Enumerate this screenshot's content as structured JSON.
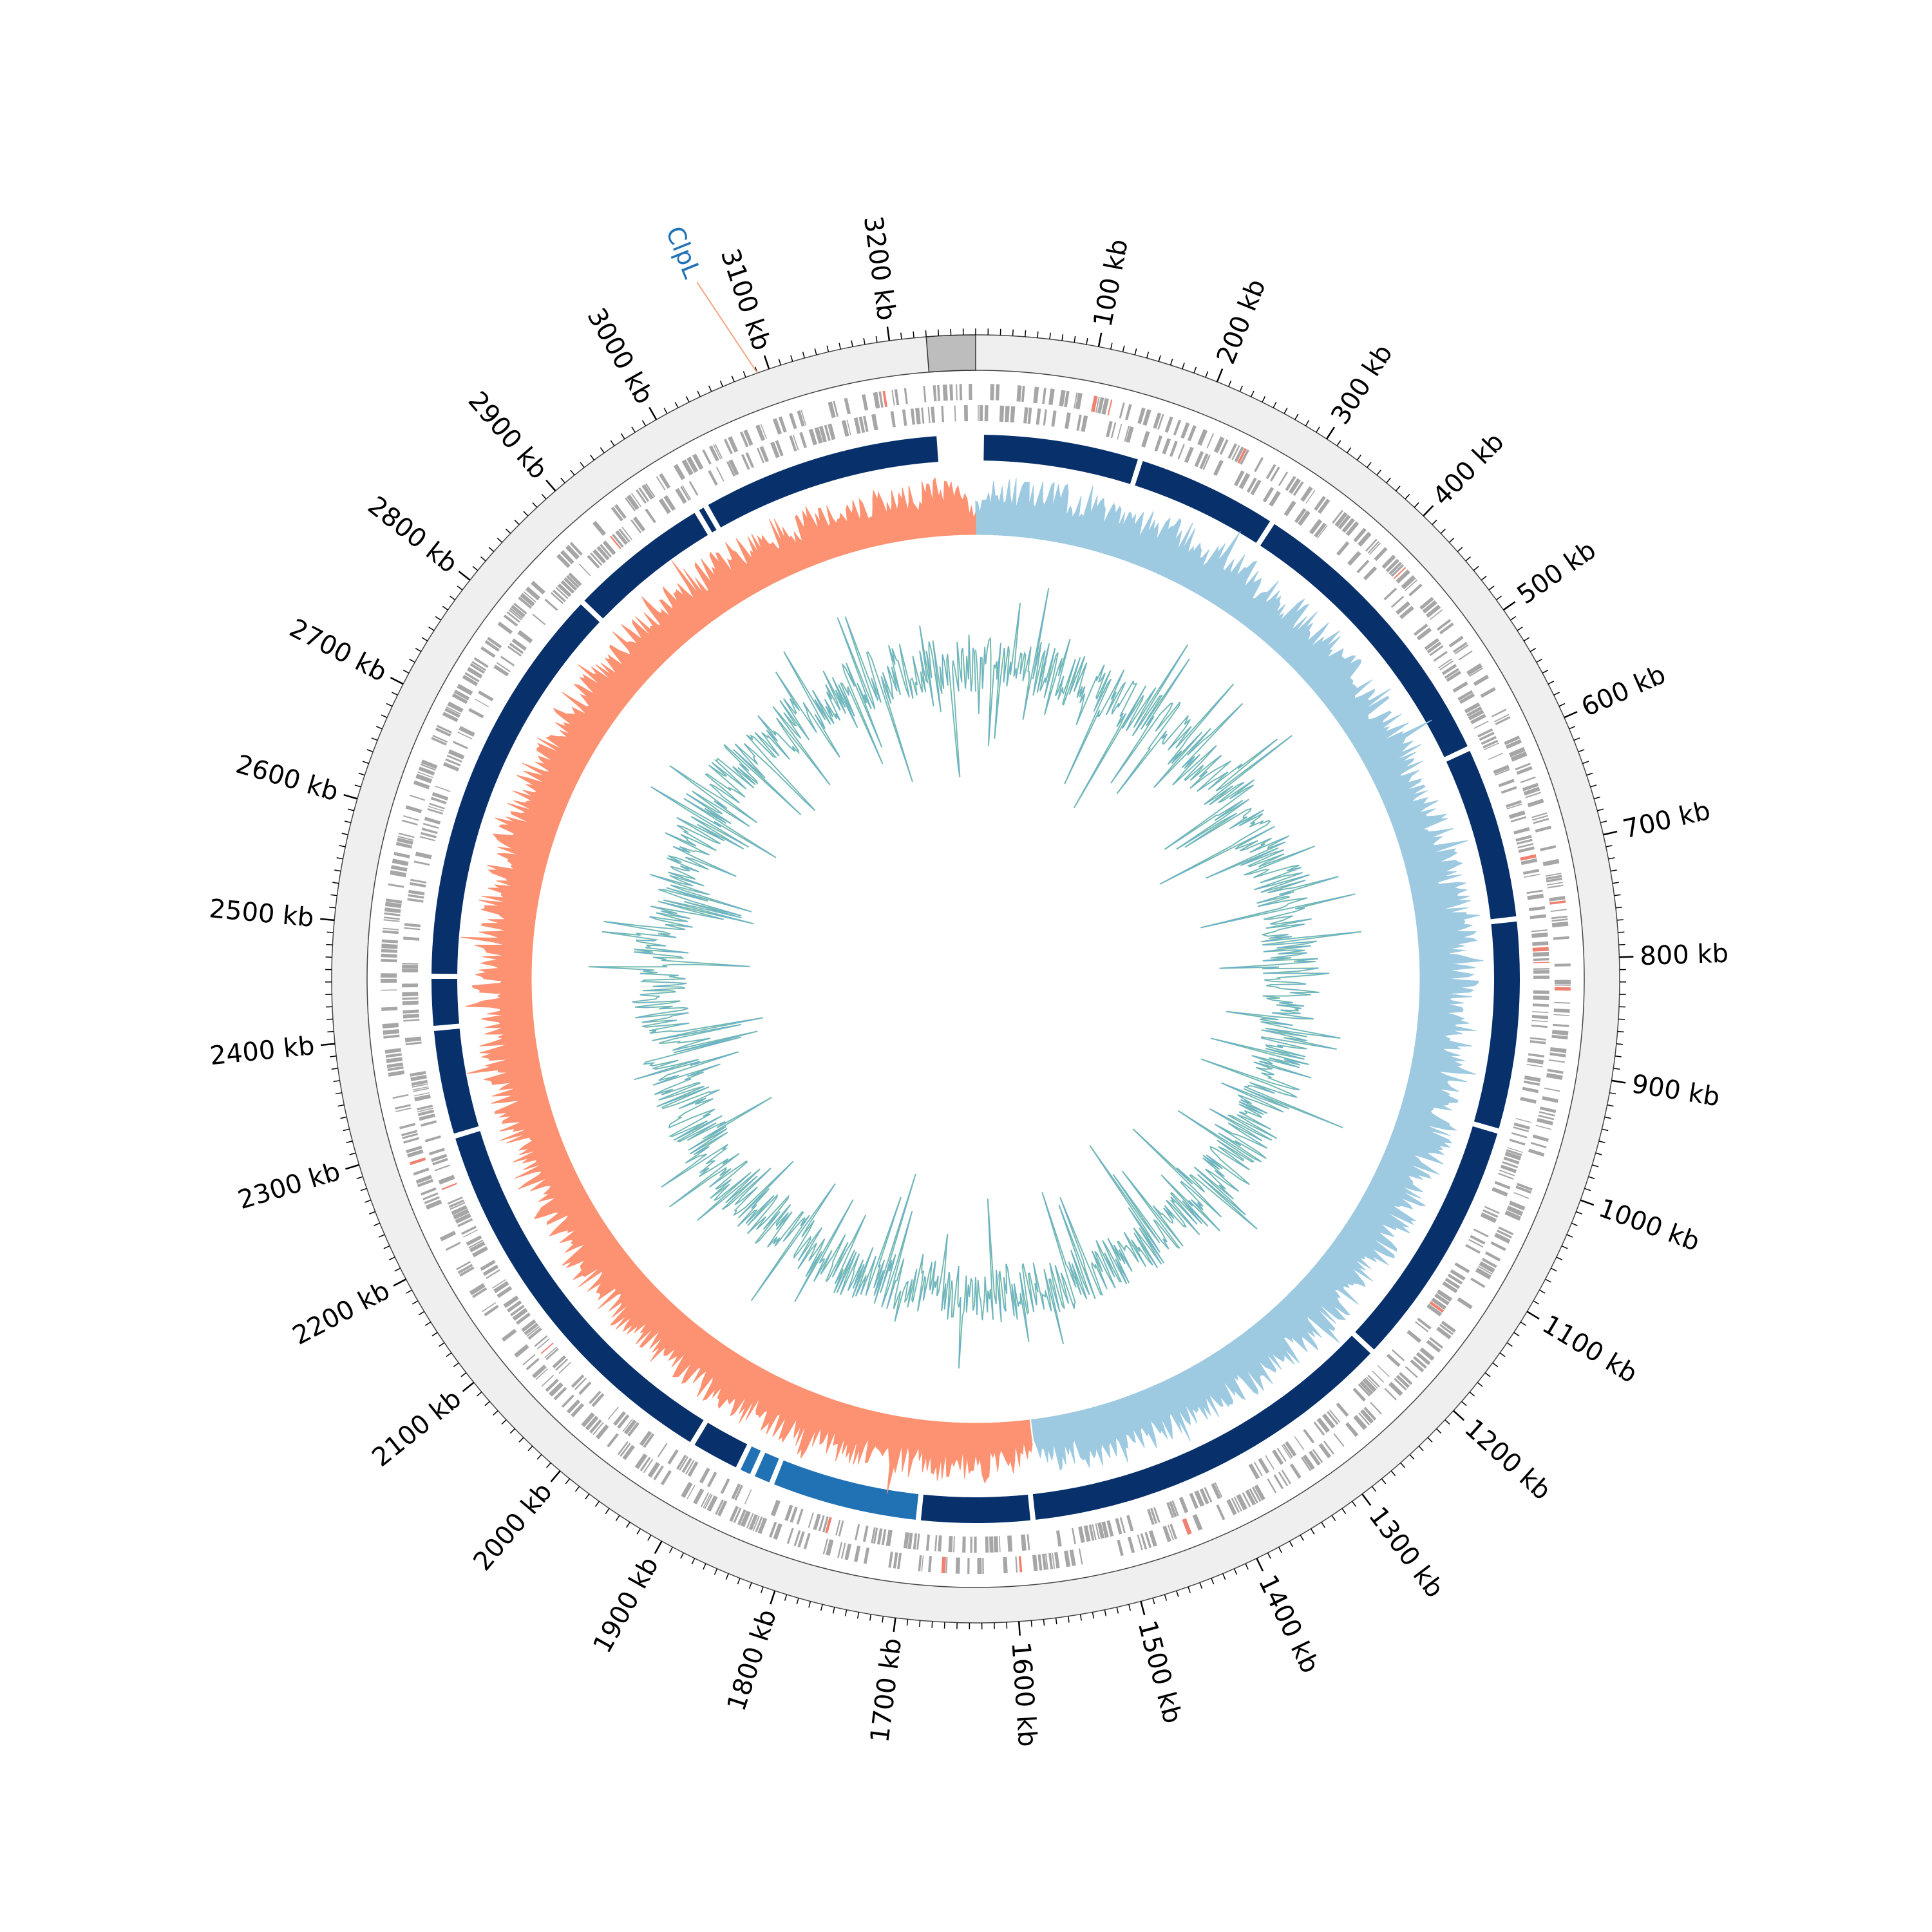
{
  "genome": {
    "length_kb": 3270,
    "tick_label_values_kb": [
      100,
      200,
      300,
      400,
      500,
      600,
      700,
      800,
      900,
      1000,
      1100,
      1200,
      1300,
      1400,
      1500,
      1600,
      1700,
      1800,
      1900,
      2000,
      2100,
      2200,
      2300,
      2400,
      2500,
      2600,
      2700,
      2800,
      2900,
      3000,
      3100,
      3200
    ],
    "tick_labels": [
      "100 kb",
      "200 kb",
      "300 kb",
      "400 kb",
      "500 kb",
      "600 kb",
      "700 kb",
      "800 kb",
      "900 kb",
      "1000 kb",
      "1100 kb",
      "1200 kb",
      "1300 kb",
      "1400 kb",
      "1500 kb",
      "1600 kb",
      "1700 kb",
      "1800 kb",
      "1900 kb",
      "2000 kb",
      "2100 kb",
      "2200 kb",
      "2300 kb",
      "2400 kb",
      "2500 kb",
      "2600 kb",
      "2700 kb",
      "2800 kb",
      "2900 kb",
      "3000 kb",
      "3100 kb",
      "3200 kb"
    ],
    "minor_tick_step_kb": 10,
    "highlight_region_kb": [
      3230,
      3270
    ]
  },
  "annotation": {
    "label": "ClpL",
    "position_kb": 3090
  },
  "contig_gaps_kb": [
    160,
    300,
    590,
    760,
    965,
    1210,
    1580,
    1690,
    1835,
    1855,
    1870,
    1920,
    2300,
    2405,
    2455,
    2850,
    2990,
    3000
  ],
  "tracks": {
    "gc_skew": {
      "positive_color": "#9ecae1",
      "negative_color": "#fc9272",
      "switch_kb": [
        0,
        1570
      ]
    },
    "gc_content": {
      "line_color": "#6baed6",
      "fill_color": "#74c476"
    },
    "contigs": {
      "color": "#08306b",
      "alt_color": "#2171b5"
    },
    "cds": {
      "color": "#a6a6a6",
      "rna_color": "#f08070"
    }
  },
  "colors": {
    "outer_band": "#efefef",
    "highlight": "#bdbdbd",
    "annotation": "#2171b5",
    "annotation_line": "#f4a582"
  }
}
